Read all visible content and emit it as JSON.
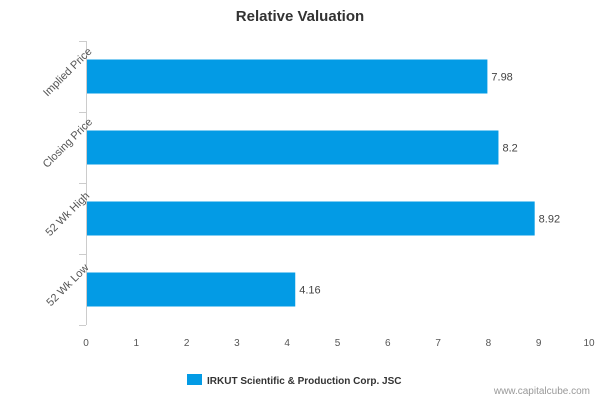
{
  "chart_data": {
    "type": "bar",
    "orientation": "horizontal",
    "title": "Relative Valuation",
    "categories": [
      "Implied Price",
      "Closing Price",
      "52 Wk High",
      "52 Wk Low"
    ],
    "series": [
      {
        "name": "IRKUT Scientific & Production Corp. JSC",
        "values": [
          7.98,
          8.2,
          8.92,
          4.16
        ],
        "value_labels": [
          "7.98",
          "8.2",
          "8.92",
          "4.16"
        ],
        "color": "#039BE5"
      }
    ],
    "xlim": [
      0,
      10
    ],
    "x_ticks": [
      "0",
      "1",
      "2",
      "3",
      "4",
      "5",
      "6",
      "7",
      "8",
      "9",
      "10"
    ],
    "grid": false,
    "legend_position": "bottom"
  },
  "watermark": "www.capitalcube.com",
  "colors": {
    "bar": "#039BE5",
    "axis": "#cccccc"
  }
}
